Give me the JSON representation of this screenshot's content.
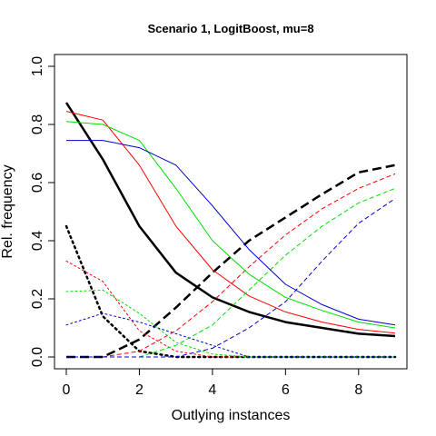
{
  "chart_data": {
    "type": "line",
    "title": "Scenario 1, LogitBoost, mu=8",
    "xlabel": "Outlying instances",
    "ylabel": "Rel. frequency",
    "xlim": [
      0,
      9
    ],
    "ylim": [
      0,
      1
    ],
    "xticks": [
      0,
      2,
      4,
      6,
      8
    ],
    "yticks": [
      0.0,
      0.2,
      0.4,
      0.6,
      0.8,
      1.0
    ],
    "ytick_labels": [
      "0.0",
      "0.2",
      "0.4",
      "0.6",
      "0.8",
      "1.0"
    ],
    "grid": false,
    "legend": "none",
    "x": [
      0,
      1,
      2,
      3,
      4,
      5,
      6,
      7,
      8,
      9
    ],
    "series": [
      {
        "color": "#000000",
        "style": "solid",
        "width": 2.5,
        "values": [
          0.875,
          0.68,
          0.45,
          0.29,
          0.205,
          0.155,
          0.12,
          0.1,
          0.08,
          0.072
        ]
      },
      {
        "color": "#000000",
        "style": "dashed",
        "width": 2.5,
        "values": [
          0.0,
          0.0,
          0.06,
          0.17,
          0.29,
          0.4,
          0.48,
          0.56,
          0.635,
          0.66
        ]
      },
      {
        "color": "#000000",
        "style": "dotted",
        "width": 2.5,
        "values": [
          0.45,
          0.14,
          0.02,
          0.0,
          0.0,
          0.0,
          0.0,
          0.0,
          0.0,
          0.0
        ]
      },
      {
        "color": "#ff0000",
        "style": "solid",
        "width": 1,
        "values": [
          0.845,
          0.815,
          0.66,
          0.45,
          0.3,
          0.21,
          0.155,
          0.12,
          0.095,
          0.082
        ]
      },
      {
        "color": "#ff0000",
        "style": "dashed",
        "width": 1,
        "values": [
          0.0,
          0.0,
          0.02,
          0.09,
          0.19,
          0.31,
          0.42,
          0.51,
          0.58,
          0.63
        ]
      },
      {
        "color": "#ff0000",
        "style": "dotted",
        "width": 1,
        "values": [
          0.33,
          0.26,
          0.09,
          0.02,
          0.0,
          0.0,
          0.0,
          0.0,
          0.0,
          0.0
        ]
      },
      {
        "color": "#00dd00",
        "style": "solid",
        "width": 1,
        "values": [
          0.81,
          0.8,
          0.745,
          0.58,
          0.4,
          0.285,
          0.205,
          0.16,
          0.12,
          0.1
        ]
      },
      {
        "color": "#00dd00",
        "style": "dashed",
        "width": 1,
        "values": [
          0.0,
          0.0,
          0.0,
          0.04,
          0.11,
          0.23,
          0.35,
          0.45,
          0.53,
          0.58
        ]
      },
      {
        "color": "#00dd00",
        "style": "dotted",
        "width": 1,
        "values": [
          0.225,
          0.23,
          0.15,
          0.05,
          0.01,
          0.0,
          0.0,
          0.0,
          0.0,
          0.0
        ]
      },
      {
        "color": "#0000cc",
        "style": "solid",
        "width": 1,
        "values": [
          0.745,
          0.745,
          0.72,
          0.66,
          0.52,
          0.37,
          0.25,
          0.18,
          0.13,
          0.11
        ]
      },
      {
        "color": "#0000cc",
        "style": "dashed",
        "width": 1,
        "values": [
          0.0,
          0.0,
          0.0,
          0.0,
          0.03,
          0.1,
          0.19,
          0.33,
          0.46,
          0.545
        ]
      },
      {
        "color": "#0000cc",
        "style": "dotted",
        "width": 1,
        "values": [
          0.11,
          0.15,
          0.12,
          0.08,
          0.04,
          0.0,
          0.0,
          0.0,
          0.0,
          0.0
        ]
      }
    ]
  }
}
